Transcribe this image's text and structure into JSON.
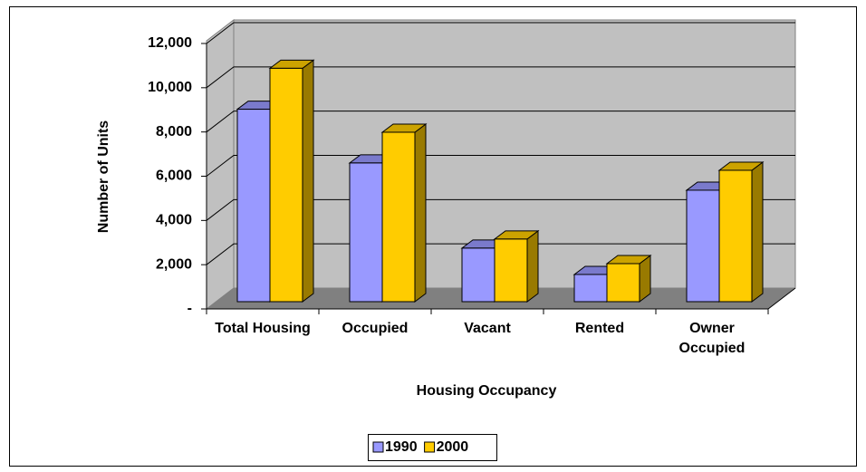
{
  "chart_data": {
    "type": "bar3d",
    "y_axis_label": "Number of Units",
    "x_axis_label": "Housing Occupancy",
    "categories": [
      "Total Housing",
      "Occupied",
      "Vacant",
      "Rented",
      "Owner Occupied"
    ],
    "series": [
      {
        "name": "1990",
        "color": "#9999ff",
        "values": [
          8700,
          6270,
          2420,
          1230,
          5040
        ]
      },
      {
        "name": "2000",
        "color": "#ffcc00",
        "values": [
          10550,
          7660,
          2830,
          1720,
          5940
        ]
      }
    ],
    "ylim": [
      0,
      12000
    ],
    "yticks": [
      {
        "value": 0,
        "label": "-"
      },
      {
        "value": 2000,
        "label": "2,000"
      },
      {
        "value": 4000,
        "label": "4,000"
      },
      {
        "value": 6000,
        "label": "6,000"
      },
      {
        "value": 8000,
        "label": "8,000"
      },
      {
        "value": 10000,
        "label": "10,000"
      },
      {
        "value": 12000,
        "label": "12,000"
      }
    ],
    "grid": true,
    "legend": "bottom"
  }
}
